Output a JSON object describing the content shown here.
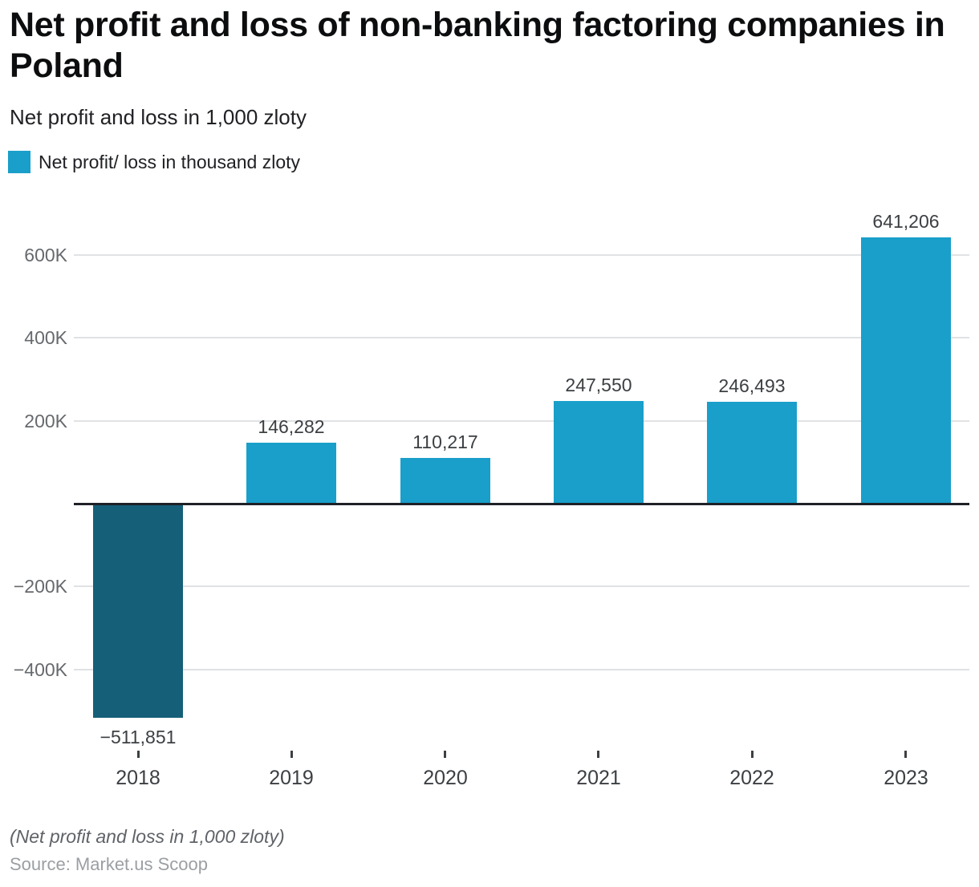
{
  "page": {
    "title": "Net profit and loss of non-banking factoring companies in Poland",
    "subtitle": "Net profit and loss in 1,000 zloty",
    "footnote": "(Net profit and loss in 1,000 zloty)",
    "source": "Source: Market.us Scoop"
  },
  "legend": {
    "label": "Net profit/ loss in thousand zloty"
  },
  "colors": {
    "positive_bar": "#199fca",
    "negative_bar": "#155f78",
    "axis_line": "#1e2126",
    "gridline": "#e0e2e4",
    "ytick_label": "#66696d",
    "value_label": "#3c4043",
    "category_label": "#3c4043",
    "xtick": "#3c4043"
  },
  "chart_data": {
    "type": "bar",
    "title": "Net profit and loss of non-banking factoring companies in Poland",
    "subtitle": "Net profit and loss in 1,000 zloty",
    "series_name": "Net profit/ loss in thousand zloty",
    "unit": "1,000 zloty",
    "categories": [
      "2018",
      "2019",
      "2020",
      "2021",
      "2022",
      "2023"
    ],
    "values": [
      -511851,
      146282,
      110217,
      247550,
      246493,
      641206
    ],
    "value_labels": [
      "−511,851",
      "146,282",
      "110,217",
      "247,550",
      "246,493",
      "641,206"
    ],
    "ylim": [
      -560000,
      720000
    ],
    "yticks": [
      {
        "value": 600000,
        "label": "600K"
      },
      {
        "value": 400000,
        "label": "400K"
      },
      {
        "value": 200000,
        "label": "200K"
      },
      {
        "value": -200000,
        "label": "−200K"
      },
      {
        "value": -400000,
        "label": "−400K"
      }
    ],
    "grid": "horizontal-only",
    "legend_position": "top-left"
  }
}
